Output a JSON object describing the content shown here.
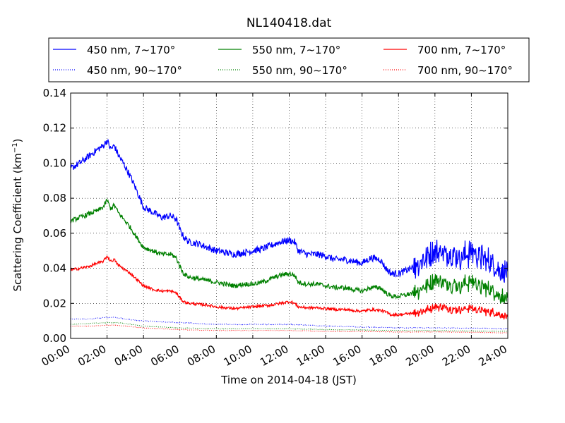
{
  "chart_data": {
    "type": "line",
    "title": "NL140418.dat",
    "xlabel": "Time on 2014-04-18 (JST)",
    "ylabel": "Scattering Coefficient (km",
    "ylabel_sup": "−1",
    "ylabel_end": ")",
    "xlim": [
      0,
      24
    ],
    "ylim": [
      0,
      0.14
    ],
    "grid": true,
    "legend_position": "top",
    "x_ticks": [
      0,
      2,
      4,
      6,
      8,
      10,
      12,
      14,
      16,
      18,
      20,
      22,
      24
    ],
    "x_tick_labels": [
      "00:00",
      "02:00",
      "04:00",
      "06:00",
      "08:00",
      "10:00",
      "12:00",
      "14:00",
      "16:00",
      "18:00",
      "20:00",
      "22:00",
      "24:00"
    ],
    "y_ticks": [
      0,
      0.02,
      0.04,
      0.06,
      0.08,
      0.1,
      0.12,
      0.14
    ],
    "y_tick_labels": [
      "0.00",
      "0.02",
      "0.04",
      "0.06",
      "0.08",
      "0.10",
      "0.12",
      "0.14"
    ],
    "series": [
      {
        "name": "450 nm, 7∼170°",
        "color": "#0000ff",
        "style": "solid",
        "points": [
          [
            0,
            0.097
          ],
          [
            0.5,
            0.1
          ],
          [
            1,
            0.104
          ],
          [
            1.5,
            0.108
          ],
          [
            1.8,
            0.11
          ],
          [
            2.0,
            0.113
          ],
          [
            2.2,
            0.108
          ],
          [
            2.4,
            0.11
          ],
          [
            2.6,
            0.105
          ],
          [
            3,
            0.098
          ],
          [
            3.3,
            0.092
          ],
          [
            3.6,
            0.085
          ],
          [
            4,
            0.075
          ],
          [
            4.5,
            0.072
          ],
          [
            5,
            0.069
          ],
          [
            5.5,
            0.07
          ],
          [
            5.8,
            0.068
          ],
          [
            6,
            0.062
          ],
          [
            6.2,
            0.058
          ],
          [
            6.5,
            0.055
          ],
          [
            7,
            0.054
          ],
          [
            7.5,
            0.052
          ],
          [
            8,
            0.05
          ],
          [
            8.5,
            0.049
          ],
          [
            9,
            0.048
          ],
          [
            9.5,
            0.049
          ],
          [
            10,
            0.05
          ],
          [
            10.5,
            0.051
          ],
          [
            11,
            0.053
          ],
          [
            11.5,
            0.055
          ],
          [
            12,
            0.056
          ],
          [
            12.3,
            0.055
          ],
          [
            12.5,
            0.05
          ],
          [
            13,
            0.048
          ],
          [
            13.5,
            0.048
          ],
          [
            14,
            0.047
          ],
          [
            14.5,
            0.045
          ],
          [
            15,
            0.045
          ],
          [
            15.5,
            0.044
          ],
          [
            16,
            0.043
          ],
          [
            16.5,
            0.046
          ],
          [
            17,
            0.045
          ],
          [
            17.3,
            0.04
          ],
          [
            17.6,
            0.037
          ],
          [
            18,
            0.037
          ],
          [
            18.5,
            0.039
          ],
          [
            19,
            0.042
          ],
          [
            19.5,
            0.046
          ],
          [
            20,
            0.05
          ],
          [
            20.5,
            0.049
          ],
          [
            21,
            0.048
          ],
          [
            21.5,
            0.046
          ],
          [
            22,
            0.05
          ],
          [
            22.5,
            0.047
          ],
          [
            23,
            0.044
          ],
          [
            23.5,
            0.04
          ],
          [
            24,
            0.036
          ]
        ],
        "noise_start": 18.8,
        "noise_amp": 0.008
      },
      {
        "name": "450 nm, 90∼170°",
        "color": "#0000ff",
        "style": "dotted",
        "points": [
          [
            0,
            0.011
          ],
          [
            1,
            0.011
          ],
          [
            2,
            0.012
          ],
          [
            2.5,
            0.012
          ],
          [
            3,
            0.011
          ],
          [
            4,
            0.01
          ],
          [
            5,
            0.0095
          ],
          [
            6,
            0.009
          ],
          [
            7,
            0.0085
          ],
          [
            8,
            0.008
          ],
          [
            10,
            0.008
          ],
          [
            12,
            0.008
          ],
          [
            13,
            0.0075
          ],
          [
            14,
            0.007
          ],
          [
            16,
            0.0065
          ],
          [
            18,
            0.006
          ],
          [
            20,
            0.006
          ],
          [
            22,
            0.0058
          ],
          [
            24,
            0.0055
          ]
        ],
        "noise_start": 30,
        "noise_amp": 0.0005
      },
      {
        "name": "550 nm, 7∼170°",
        "color": "#008000",
        "style": "solid",
        "points": [
          [
            0,
            0.067
          ],
          [
            0.5,
            0.069
          ],
          [
            1,
            0.071
          ],
          [
            1.5,
            0.073
          ],
          [
            1.8,
            0.075
          ],
          [
            2.0,
            0.079
          ],
          [
            2.2,
            0.074
          ],
          [
            2.4,
            0.076
          ],
          [
            2.6,
            0.072
          ],
          [
            3,
            0.067
          ],
          [
            3.3,
            0.063
          ],
          [
            3.6,
            0.058
          ],
          [
            4,
            0.052
          ],
          [
            4.5,
            0.05
          ],
          [
            5,
            0.048
          ],
          [
            5.5,
            0.048
          ],
          [
            5.8,
            0.046
          ],
          [
            6,
            0.041
          ],
          [
            6.2,
            0.037
          ],
          [
            6.5,
            0.035
          ],
          [
            7,
            0.034
          ],
          [
            7.5,
            0.033
          ],
          [
            8,
            0.032
          ],
          [
            8.5,
            0.031
          ],
          [
            9,
            0.03
          ],
          [
            9.5,
            0.031
          ],
          [
            10,
            0.031
          ],
          [
            10.5,
            0.032
          ],
          [
            11,
            0.034
          ],
          [
            11.5,
            0.036
          ],
          [
            12,
            0.037
          ],
          [
            12.3,
            0.036
          ],
          [
            12.5,
            0.032
          ],
          [
            13,
            0.031
          ],
          [
            13.5,
            0.031
          ],
          [
            14,
            0.03
          ],
          [
            14.5,
            0.029
          ],
          [
            15,
            0.029
          ],
          [
            15.5,
            0.028
          ],
          [
            16,
            0.027
          ],
          [
            16.5,
            0.029
          ],
          [
            17,
            0.029
          ],
          [
            17.3,
            0.026
          ],
          [
            17.6,
            0.024
          ],
          [
            18,
            0.024
          ],
          [
            18.5,
            0.025
          ],
          [
            19,
            0.027
          ],
          [
            19.5,
            0.03
          ],
          [
            20,
            0.033
          ],
          [
            20.5,
            0.032
          ],
          [
            21,
            0.031
          ],
          [
            21.5,
            0.03
          ],
          [
            22,
            0.033
          ],
          [
            22.5,
            0.03
          ],
          [
            23,
            0.028
          ],
          [
            23.5,
            0.025
          ],
          [
            24,
            0.022
          ]
        ],
        "noise_start": 18.8,
        "noise_amp": 0.005
      },
      {
        "name": "550 nm, 90∼170°",
        "color": "#008000",
        "style": "dotted",
        "points": [
          [
            0,
            0.008
          ],
          [
            1,
            0.0085
          ],
          [
            2,
            0.009
          ],
          [
            2.5,
            0.009
          ],
          [
            3,
            0.0085
          ],
          [
            4,
            0.007
          ],
          [
            5,
            0.0065
          ],
          [
            6,
            0.006
          ],
          [
            8,
            0.0055
          ],
          [
            10,
            0.0055
          ],
          [
            12,
            0.0055
          ],
          [
            14,
            0.005
          ],
          [
            16,
            0.0048
          ],
          [
            18,
            0.0045
          ],
          [
            20,
            0.0045
          ],
          [
            22,
            0.0042
          ],
          [
            24,
            0.004
          ]
        ],
        "noise_start": 30,
        "noise_amp": 0.0004
      },
      {
        "name": "700 nm, 7∼170°",
        "color": "#ff0000",
        "style": "solid",
        "points": [
          [
            0,
            0.039
          ],
          [
            0.5,
            0.04
          ],
          [
            1,
            0.041
          ],
          [
            1.5,
            0.043
          ],
          [
            1.8,
            0.044
          ],
          [
            2.0,
            0.047
          ],
          [
            2.2,
            0.044
          ],
          [
            2.4,
            0.045
          ],
          [
            2.6,
            0.042
          ],
          [
            3,
            0.039
          ],
          [
            3.3,
            0.037
          ],
          [
            3.6,
            0.034
          ],
          [
            4,
            0.03
          ],
          [
            4.5,
            0.028
          ],
          [
            5,
            0.027
          ],
          [
            5.5,
            0.027
          ],
          [
            5.8,
            0.026
          ],
          [
            6,
            0.023
          ],
          [
            6.2,
            0.021
          ],
          [
            6.5,
            0.02
          ],
          [
            7,
            0.0195
          ],
          [
            7.5,
            0.019
          ],
          [
            8,
            0.018
          ],
          [
            8.5,
            0.0175
          ],
          [
            9,
            0.017
          ],
          [
            9.5,
            0.0175
          ],
          [
            10,
            0.018
          ],
          [
            10.5,
            0.0185
          ],
          [
            11,
            0.019
          ],
          [
            11.5,
            0.02
          ],
          [
            12,
            0.021
          ],
          [
            12.3,
            0.02
          ],
          [
            12.5,
            0.018
          ],
          [
            13,
            0.0175
          ],
          [
            13.5,
            0.0175
          ],
          [
            14,
            0.017
          ],
          [
            14.5,
            0.0165
          ],
          [
            15,
            0.0165
          ],
          [
            15.5,
            0.016
          ],
          [
            16,
            0.0155
          ],
          [
            16.5,
            0.0165
          ],
          [
            17,
            0.016
          ],
          [
            17.3,
            0.015
          ],
          [
            17.6,
            0.0135
          ],
          [
            18,
            0.0135
          ],
          [
            18.5,
            0.014
          ],
          [
            19,
            0.015
          ],
          [
            19.5,
            0.016
          ],
          [
            20,
            0.018
          ],
          [
            20.5,
            0.0175
          ],
          [
            21,
            0.017
          ],
          [
            21.5,
            0.0165
          ],
          [
            22,
            0.0175
          ],
          [
            22.5,
            0.016
          ],
          [
            23,
            0.015
          ],
          [
            23.5,
            0.014
          ],
          [
            24,
            0.012
          ]
        ],
        "noise_start": 18.8,
        "noise_amp": 0.0025
      },
      {
        "name": "700 nm, 90∼170°",
        "color": "#ff0000",
        "style": "dotted",
        "points": [
          [
            0,
            0.007
          ],
          [
            1,
            0.007
          ],
          [
            2,
            0.0075
          ],
          [
            2.5,
            0.0075
          ],
          [
            3,
            0.007
          ],
          [
            4,
            0.006
          ],
          [
            5,
            0.0055
          ],
          [
            6,
            0.005
          ],
          [
            8,
            0.0045
          ],
          [
            10,
            0.0045
          ],
          [
            12,
            0.0045
          ],
          [
            14,
            0.004
          ],
          [
            16,
            0.004
          ],
          [
            18,
            0.0037
          ],
          [
            20,
            0.0037
          ],
          [
            22,
            0.0035
          ],
          [
            24,
            0.0032
          ]
        ],
        "noise_start": 30,
        "noise_amp": 0.0003
      }
    ]
  }
}
